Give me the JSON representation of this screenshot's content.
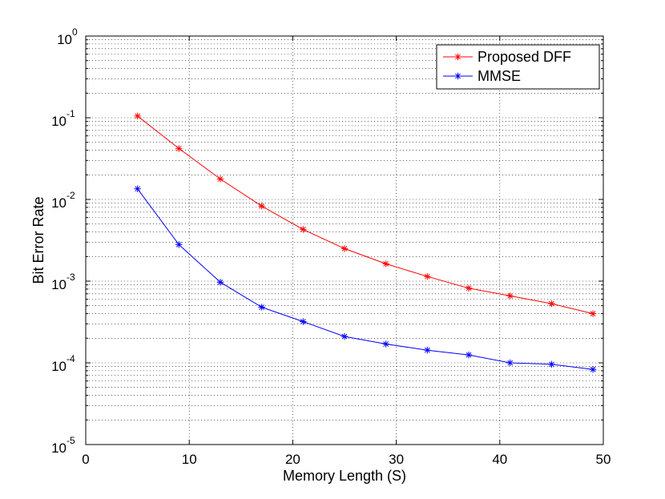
{
  "chart_data": {
    "type": "line",
    "title": "",
    "xlabel": "Memory Length (S)",
    "ylabel": "Bit Error Rate",
    "xlim": [
      0,
      50
    ],
    "ylim": [
      1e-05,
      1
    ],
    "yscale": "log",
    "grid": true,
    "legend_position": "top-right",
    "x_ticks": [
      "0",
      "10",
      "20",
      "30",
      "40",
      "50"
    ],
    "y_ticks": [
      {
        "base": "10",
        "exp": "0",
        "value": 1
      },
      {
        "base": "10",
        "exp": "-1",
        "value": 0.1
      },
      {
        "base": "10",
        "exp": "-2",
        "value": 0.01
      },
      {
        "base": "10",
        "exp": "-3",
        "value": 0.001
      },
      {
        "base": "10",
        "exp": "-4",
        "value": 0.0001
      },
      {
        "base": "10",
        "exp": "-5",
        "value": 1e-05
      }
    ],
    "x": [
      5,
      9,
      13,
      17,
      21,
      25,
      29,
      33,
      37,
      41,
      45,
      49
    ],
    "series": [
      {
        "name": "Proposed DFF",
        "color": "#ff0000",
        "marker": "asterisk",
        "values": [
          0.105,
          0.042,
          0.0178,
          0.0083,
          0.0043,
          0.0025,
          0.00163,
          0.00114,
          0.00082,
          0.00066,
          0.00053,
          0.0004
        ]
      },
      {
        "name": "MMSE",
        "color": "#0000ff",
        "marker": "asterisk",
        "values": [
          0.0135,
          0.0028,
          0.00097,
          0.00048,
          0.00032,
          0.00021,
          0.00017,
          0.000143,
          0.000125,
          0.0001,
          9.6e-05,
          8.3e-05
        ]
      }
    ]
  }
}
